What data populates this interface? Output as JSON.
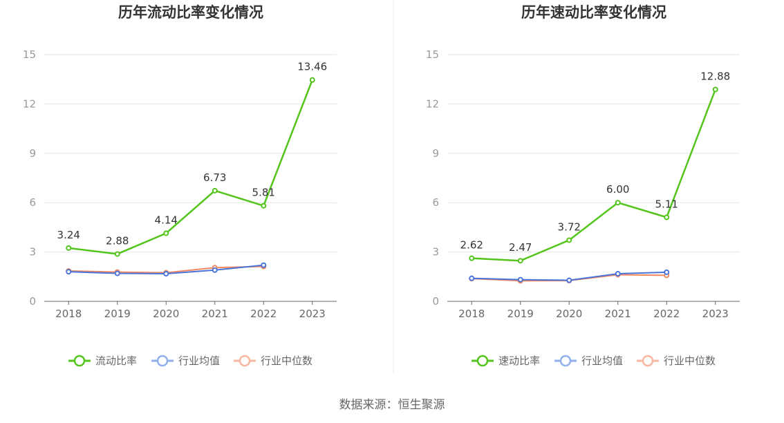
{
  "colors": {
    "main": "#52c41a",
    "avg": "#4a74d9",
    "median": "#f08862",
    "avg_legend": "#8fb0ec",
    "median_legend": "#f9b6a0"
  },
  "chart_data": [
    {
      "type": "line",
      "title": "历年流动比率变化情况",
      "categories": [
        "2018",
        "2019",
        "2020",
        "2021",
        "2022",
        "2023"
      ],
      "ylim": [
        0,
        15
      ],
      "yticks": [
        "0",
        "3",
        "6",
        "9",
        "12",
        "15"
      ],
      "series": [
        {
          "name": "流动比率",
          "values": [
            3.24,
            2.88,
            4.14,
            6.73,
            5.81,
            13.46
          ],
          "labels": [
            "3.24",
            "2.88",
            "4.14",
            "6.73",
            "5.81",
            "13.46"
          ]
        },
        {
          "name": "行业均值",
          "values": [
            1.8,
            1.7,
            1.68,
            1.9,
            2.2,
            null
          ]
        },
        {
          "name": "行业中位数",
          "values": [
            1.85,
            1.78,
            1.74,
            2.05,
            2.12,
            null
          ]
        }
      ]
    },
    {
      "type": "line",
      "title": "历年速动比率变化情况",
      "categories": [
        "2018",
        "2019",
        "2020",
        "2021",
        "2022",
        "2023"
      ],
      "ylim": [
        0,
        15
      ],
      "yticks": [
        "0",
        "3",
        "6",
        "9",
        "12",
        "15"
      ],
      "series": [
        {
          "name": "速动比率",
          "values": [
            2.62,
            2.47,
            3.72,
            6.0,
            5.11,
            12.88
          ],
          "labels": [
            "2.62",
            "2.47",
            "3.72",
            "6.00",
            "5.11",
            "12.88"
          ]
        },
        {
          "name": "行业均值",
          "values": [
            1.4,
            1.32,
            1.28,
            1.68,
            1.77,
            null
          ]
        },
        {
          "name": "行业中位数",
          "values": [
            1.38,
            1.25,
            1.26,
            1.62,
            1.58,
            null
          ]
        }
      ]
    }
  ],
  "footer": {
    "source": "数据来源：恒生聚源"
  }
}
